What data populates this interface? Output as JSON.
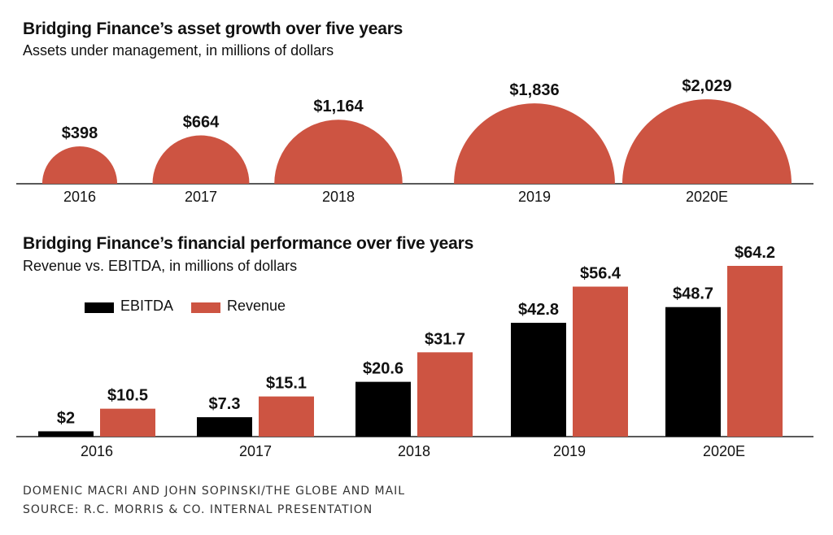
{
  "chart_data": [
    {
      "type": "semicircle",
      "title": "Bridging Finance’s asset growth over five years",
      "subtitle": "Assets under management, in millions of dollars",
      "categories": [
        "2016",
        "2017",
        "2018",
        "2019",
        "2020E"
      ],
      "values": [
        398,
        664,
        1164,
        1836,
        2029
      ],
      "value_labels": [
        "$398",
        "$664",
        "$1,164",
        "$1,836",
        "$2,029"
      ],
      "color": "#cd5442"
    },
    {
      "type": "bar",
      "title": "Bridging Finance’s financial performance over five years",
      "subtitle": "Revenue vs. EBITDA, in millions of dollars",
      "categories": [
        "2016",
        "2017",
        "2018",
        "2019",
        "2020E"
      ],
      "series": [
        {
          "name": "EBITDA",
          "values": [
            2,
            7.3,
            20.6,
            42.8,
            48.7
          ],
          "labels": [
            "$2",
            "$7.3",
            "$20.6",
            "$42.8",
            "$48.7"
          ],
          "color": "#000000"
        },
        {
          "name": "Revenue",
          "values": [
            10.5,
            15.1,
            31.7,
            56.4,
            64.2
          ],
          "labels": [
            "$10.5",
            "$15.1",
            "$31.7",
            "$56.4",
            "$64.2"
          ],
          "color": "#cd5442"
        }
      ],
      "legend_position": "top-left"
    }
  ],
  "credits": {
    "line1": "DOMENIC MACRI AND JOHN SOPINSKI/THE GLOBE AND MAIL",
    "line2": "SOURCE: R.C. MORRIS & CO. INTERNAL PRESENTATION"
  }
}
